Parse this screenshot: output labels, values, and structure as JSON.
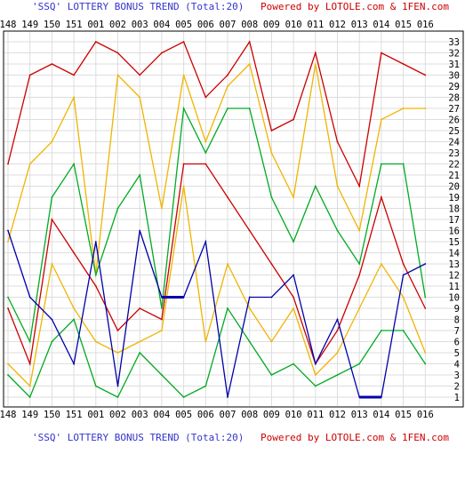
{
  "chart_data": {
    "type": "line",
    "title": "'SSQ' LOTTERY BONUS TREND (Total:20)",
    "credit": "Powered by LOTOLE.com & 1FEN.com",
    "categories": [
      "148",
      "149",
      "150",
      "151",
      "001",
      "002",
      "003",
      "004",
      "005",
      "006",
      "007",
      "008",
      "009",
      "010",
      "011",
      "012",
      "013",
      "014",
      "015",
      "016"
    ],
    "yticks": [
      1,
      2,
      3,
      4,
      5,
      6,
      7,
      8,
      9,
      10,
      11,
      12,
      13,
      14,
      15,
      16,
      17,
      18,
      19,
      20,
      21,
      22,
      23,
      24,
      25,
      26,
      27,
      28,
      29,
      30,
      31,
      32,
      33
    ],
    "ylim": [
      1,
      33
    ],
    "grid": true,
    "legend": "none",
    "series": [
      {
        "color": "#cc0000",
        "values": [
          22,
          30,
          31,
          30,
          33,
          32,
          30,
          32,
          33,
          28,
          30,
          33,
          25,
          26,
          32,
          24,
          20,
          32,
          31,
          30
        ]
      },
      {
        "color": "#f0b400",
        "values": [
          15,
          22,
          24,
          28,
          12,
          30,
          28,
          18,
          30,
          24,
          29,
          31,
          23,
          19,
          31,
          20,
          16,
          26,
          27,
          27
        ]
      },
      {
        "color": "#00aa22",
        "values": [
          10,
          6,
          19,
          22,
          12,
          18,
          21,
          9,
          27,
          23,
          27,
          27,
          19,
          15,
          20,
          16,
          13,
          22,
          22,
          10
        ]
      },
      {
        "color": "#cc0000",
        "values": [
          9,
          4,
          17,
          14,
          11,
          7,
          9,
          8,
          22,
          22,
          19,
          16,
          13,
          10,
          4,
          7,
          12,
          19,
          13,
          9
        ]
      },
      {
        "color": "#f0b400",
        "values": [
          4,
          2,
          13,
          9,
          6,
          5,
          6,
          7,
          20,
          6,
          13,
          9,
          6,
          9,
          3,
          5,
          9,
          13,
          10,
          5
        ]
      },
      {
        "color": "#00aa22",
        "values": [
          3,
          1,
          6,
          8,
          2,
          1,
          5,
          3,
          1,
          2,
          9,
          6,
          3,
          4,
          2,
          3,
          4,
          7,
          7,
          4
        ]
      },
      {
        "color": "#0000aa",
        "values": [
          16,
          10,
          8,
          4,
          15,
          2,
          16,
          10,
          10,
          15,
          1,
          10,
          10,
          12,
          4,
          8,
          1,
          1,
          12,
          13
        ],
        "thick_segments": [
          [
            7,
            8
          ],
          [
            16,
            17
          ]
        ]
      }
    ]
  }
}
